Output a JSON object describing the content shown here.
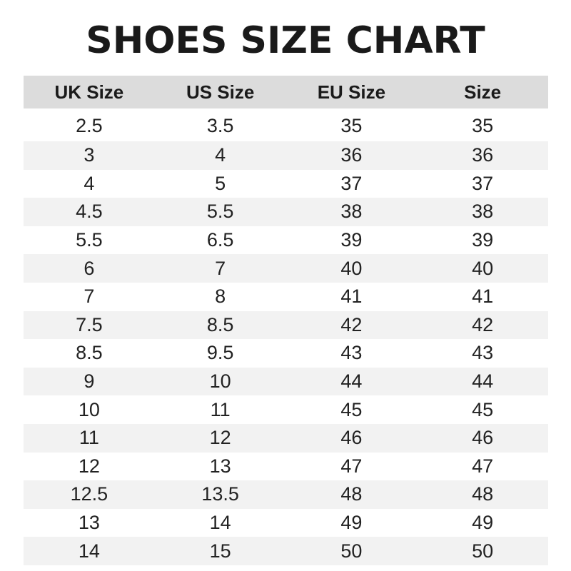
{
  "title": "SHOES SIZE CHART",
  "table": {
    "headers": [
      "UK Size",
      "US Size",
      "EU Size",
      "Size"
    ],
    "rows": [
      [
        "2.5",
        "3.5",
        "35",
        "35"
      ],
      [
        "3",
        "4",
        "36",
        "36"
      ],
      [
        "4",
        "5",
        "37",
        "37"
      ],
      [
        "4.5",
        "5.5",
        "38",
        "38"
      ],
      [
        "5.5",
        "6.5",
        "39",
        "39"
      ],
      [
        "6",
        "7",
        "40",
        "40"
      ],
      [
        "7",
        "8",
        "41",
        "41"
      ],
      [
        "7.5",
        "8.5",
        "42",
        "42"
      ],
      [
        "8.5",
        "9.5",
        "43",
        "43"
      ],
      [
        "9",
        "10",
        "44",
        "44"
      ],
      [
        "10",
        "11",
        "45",
        "45"
      ],
      [
        "11",
        "12",
        "46",
        "46"
      ],
      [
        "12",
        "13",
        "47",
        "47"
      ],
      [
        "12.5",
        "13.5",
        "48",
        "48"
      ],
      [
        "13",
        "14",
        "49",
        "49"
      ],
      [
        "14",
        "15",
        "50",
        "50"
      ]
    ]
  },
  "colors": {
    "header_bg": "#dcdcdc",
    "stripe_bg": "#f2f2f2",
    "text": "#1e1e1e"
  }
}
